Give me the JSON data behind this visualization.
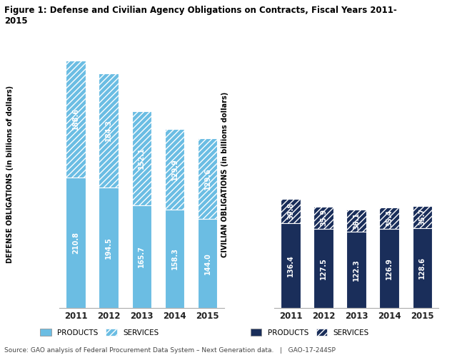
{
  "title": "Figure 1: Defense and Civilian Agency Obligations on Contracts, Fiscal Years 2011-\n2015",
  "source": "Source: GAO analysis of Federal Procurement Data System – Next Generation data.   |   GAO-17-244SP",
  "years": [
    "2011",
    "2012",
    "2013",
    "2014",
    "2015"
  ],
  "defense_products": [
    210.8,
    194.5,
    165.7,
    158.3,
    144.0
  ],
  "defense_services": [
    188.6,
    184.3,
    152.1,
    129.9,
    129.6
  ],
  "civilian_products": [
    136.4,
    127.5,
    122.3,
    126.9,
    128.6
  ],
  "civilian_services": [
    39.8,
    35.9,
    36.1,
    35.4,
    35.7
  ],
  "light_blue": "#6bbde3",
  "dark_blue": "#1a2e5a",
  "ylabel_left": "DEFENSE OBLIGATIONS (in billions of dollars)",
  "ylabel_right": "CIVILIAN OBLIGATIONS (in billions dollars)",
  "defense_ylim": [
    0,
    430
  ],
  "civilian_ylim": [
    0,
    430
  ],
  "background_color": "#ffffff"
}
